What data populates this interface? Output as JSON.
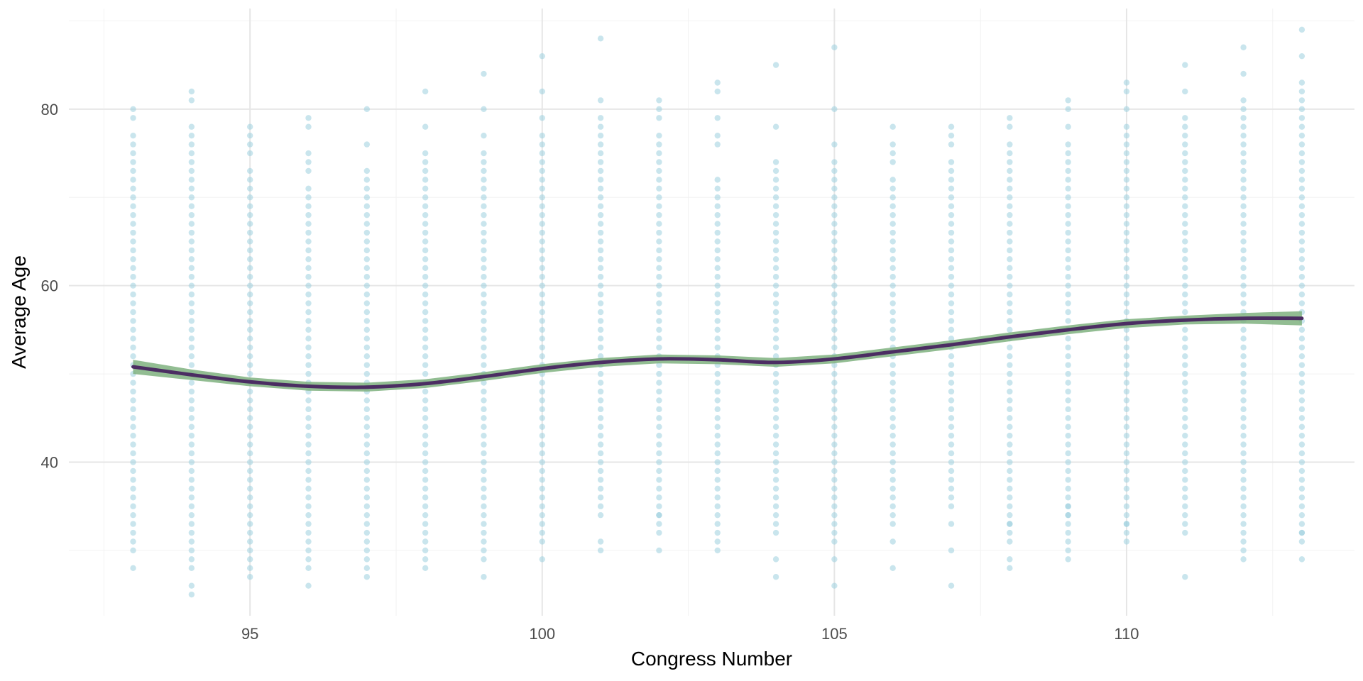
{
  "chart_data": {
    "type": "scatter",
    "title": "",
    "xlabel": "Congress Number",
    "ylabel": "Average Age",
    "xlim": [
      91.9,
      113.9
    ],
    "ylim": [
      22.6,
      91.4
    ],
    "x_ticks": [
      95,
      100,
      105,
      110
    ],
    "y_ticks": [
      40,
      60,
      80
    ],
    "grid": true,
    "legend": "none",
    "colors": {
      "points": "#9ccfdf",
      "smooth_line": "#4b2d62",
      "confidence_band": "#7fb27f",
      "grid_major": "#e6e6e6",
      "grid_minor": "#f2f2f2"
    },
    "point_columns": [
      {
        "congress": 93,
        "min_age": 30,
        "max_age": 75,
        "extra_ages": [
          28,
          76,
          77,
          79,
          80
        ]
      },
      {
        "congress": 94,
        "min_age": 28,
        "max_age": 76,
        "extra_ages": [
          25,
          26,
          77,
          78,
          81,
          82
        ]
      },
      {
        "congress": 95,
        "min_age": 29,
        "max_age": 73,
        "extra_ages": [
          27,
          28,
          75,
          76,
          77,
          78
        ]
      },
      {
        "congress": 96,
        "min_age": 28,
        "max_age": 71,
        "extra_ages": [
          26,
          73,
          74,
          75,
          78,
          79
        ]
      },
      {
        "congress": 97,
        "min_age": 29,
        "max_age": 73,
        "extra_ages": [
          27,
          28,
          76,
          80
        ]
      },
      {
        "congress": 98,
        "min_age": 28,
        "max_age": 75,
        "extra_ages": [
          78,
          82
        ]
      },
      {
        "congress": 99,
        "min_age": 29,
        "max_age": 75,
        "extra_ages": [
          27,
          77,
          80,
          84
        ]
      },
      {
        "congress": 100,
        "min_age": 31,
        "max_age": 77,
        "extra_ages": [
          29,
          79,
          82,
          86
        ]
      },
      {
        "congress": 101,
        "min_age": 34,
        "max_age": 79,
        "extra_ages": [
          30,
          31,
          81,
          88
        ]
      },
      {
        "congress": 102,
        "min_age": 32,
        "max_age": 77,
        "extra_ages": [
          30,
          34,
          79,
          80,
          81
        ]
      },
      {
        "congress": 103,
        "min_age": 31,
        "max_age": 72,
        "extra_ages": [
          30,
          76,
          77,
          79,
          82,
          83
        ]
      },
      {
        "congress": 104,
        "min_age": 32,
        "max_age": 74,
        "extra_ages": [
          27,
          29,
          78,
          85
        ]
      },
      {
        "congress": 105,
        "min_age": 31,
        "max_age": 74,
        "extra_ages": [
          26,
          29,
          76,
          80,
          87
        ]
      },
      {
        "congress": 106,
        "min_age": 33,
        "max_age": 72,
        "extra_ages": [
          28,
          31,
          74,
          75,
          76,
          78
        ]
      },
      {
        "congress": 107,
        "min_age": 35,
        "max_age": 74,
        "extra_ages": [
          26,
          30,
          33,
          76,
          77,
          78
        ]
      },
      {
        "congress": 108,
        "min_age": 31,
        "max_age": 76,
        "extra_ages": [
          28,
          29,
          33,
          78,
          79
        ]
      },
      {
        "congress": 109,
        "min_age": 32,
        "max_age": 76,
        "extra_ages": [
          29,
          30,
          31,
          34,
          35,
          78,
          80,
          81
        ]
      },
      {
        "congress": 110,
        "min_age": 31,
        "max_age": 78,
        "extra_ages": [
          33,
          80,
          82,
          83
        ]
      },
      {
        "congress": 111,
        "min_age": 32,
        "max_age": 79,
        "extra_ages": [
          27,
          82,
          85
        ]
      },
      {
        "congress": 112,
        "min_age": 31,
        "max_age": 81,
        "extra_ages": [
          29,
          30,
          84,
          87
        ]
      },
      {
        "congress": 113,
        "min_age": 31,
        "max_age": 83,
        "extra_ages": [
          29,
          32,
          86,
          89
        ]
      }
    ],
    "smooth": {
      "method": "loess",
      "x": [
        93,
        94,
        95,
        96,
        97,
        98,
        99,
        100,
        101,
        102,
        103,
        104,
        105,
        106,
        107,
        108,
        109,
        110,
        111,
        112,
        113
      ],
      "y": [
        50.8,
        49.9,
        49.1,
        48.6,
        48.5,
        48.9,
        49.7,
        50.6,
        51.3,
        51.7,
        51.6,
        51.3,
        51.7,
        52.5,
        53.3,
        54.2,
        55.0,
        55.7,
        56.1,
        56.3,
        56.3
      ],
      "band_halfwidth": [
        0.8,
        0.6,
        0.5,
        0.5,
        0.5,
        0.5,
        0.5,
        0.5,
        0.5,
        0.5,
        0.5,
        0.5,
        0.5,
        0.5,
        0.5,
        0.5,
        0.5,
        0.5,
        0.5,
        0.6,
        0.8
      ]
    }
  }
}
